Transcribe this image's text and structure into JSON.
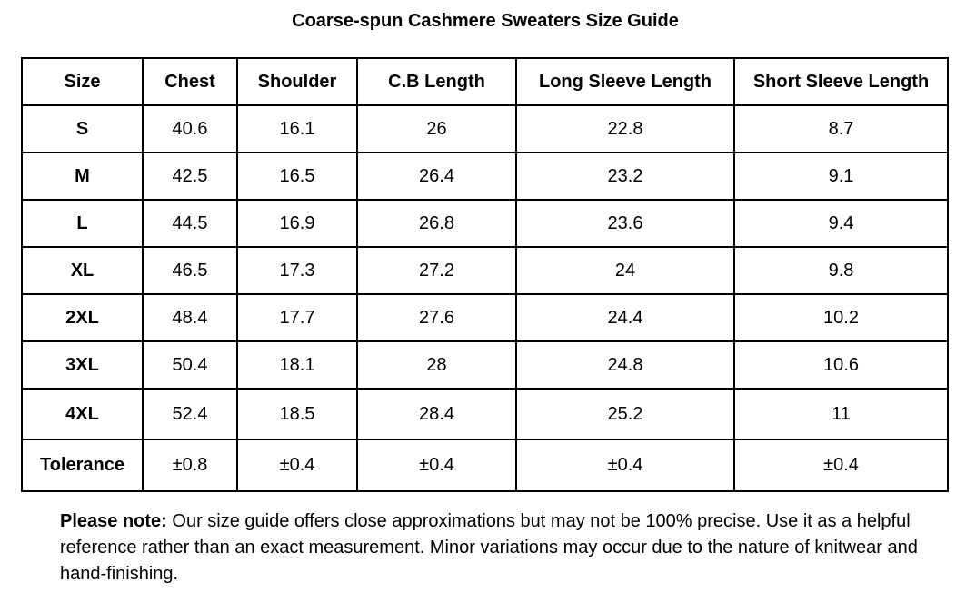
{
  "title": "Coarse-spun Cashmere Sweaters Size Guide",
  "table": {
    "headers": [
      "Size",
      "Chest",
      "Shoulder",
      "C.B Length",
      "Long Sleeve Length",
      "Short Sleeve Length"
    ],
    "rows": [
      [
        "S",
        "40.6",
        "16.1",
        "26",
        "22.8",
        "8.7"
      ],
      [
        "M",
        "42.5",
        "16.5",
        "26.4",
        "23.2",
        "9.1"
      ],
      [
        "L",
        "44.5",
        "16.9",
        "26.8",
        "23.6",
        "9.4"
      ],
      [
        "XL",
        "46.5",
        "17.3",
        "27.2",
        "24",
        "9.8"
      ],
      [
        "2XL",
        "48.4",
        "17.7",
        "27.6",
        "24.4",
        "10.2"
      ],
      [
        "3XL",
        "50.4",
        "18.1",
        "28",
        "24.8",
        "10.6"
      ],
      [
        "4XL",
        "52.4",
        "18.5",
        "28.4",
        "25.2",
        "11"
      ],
      [
        "Tolerance",
        "±0.8",
        "±0.4",
        "±0.4",
        "±0.4",
        "±0.4"
      ]
    ]
  },
  "note": {
    "label": "Please note:",
    "text": "Our size guide offers close approximations but may not be 100% precise. Use it as a helpful reference rather than an exact measurement. Minor variations may occur due to the nature of knitwear and hand-finishing."
  }
}
